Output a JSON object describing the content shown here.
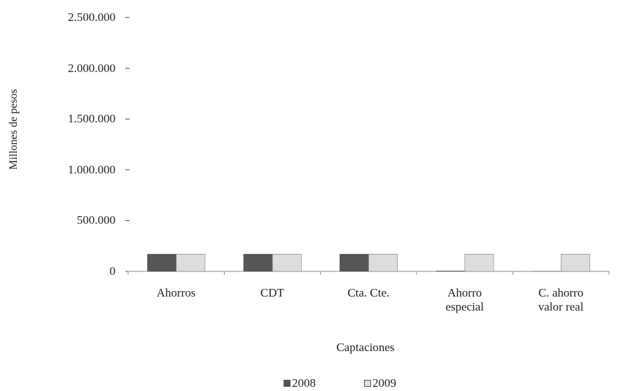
{
  "chart_data": {
    "type": "bar",
    "x_label": "Captaciones",
    "y_label": "Millones de pesos",
    "categories": [
      "Ahorros",
      "CDT",
      "Cta. Cte.",
      "Ahorro\nespecial",
      "C. ahorro\nvalor real"
    ],
    "series": [
      {
        "name": "2008",
        "color": "#555555",
        "values": [
          170000,
          170000,
          170000,
          5000,
          2000
        ]
      },
      {
        "name": "2009",
        "color": "#dddddd",
        "values": [
          170000,
          170000,
          170000,
          170000,
          170000
        ]
      }
    ],
    "ylim": [
      0,
      2500000
    ],
    "yticks": [
      0,
      {
        "value": 500000,
        "label": "500.000"
      },
      {
        "value": 1000000,
        "label": "1.000.000"
      },
      {
        "value": 1500000,
        "label": "1.500.000"
      },
      {
        "value": 2000000,
        "label": "2.000.000"
      },
      {
        "value": 2500000,
        "label": "2.500.000"
      }
    ],
    "legend": "bottom"
  }
}
